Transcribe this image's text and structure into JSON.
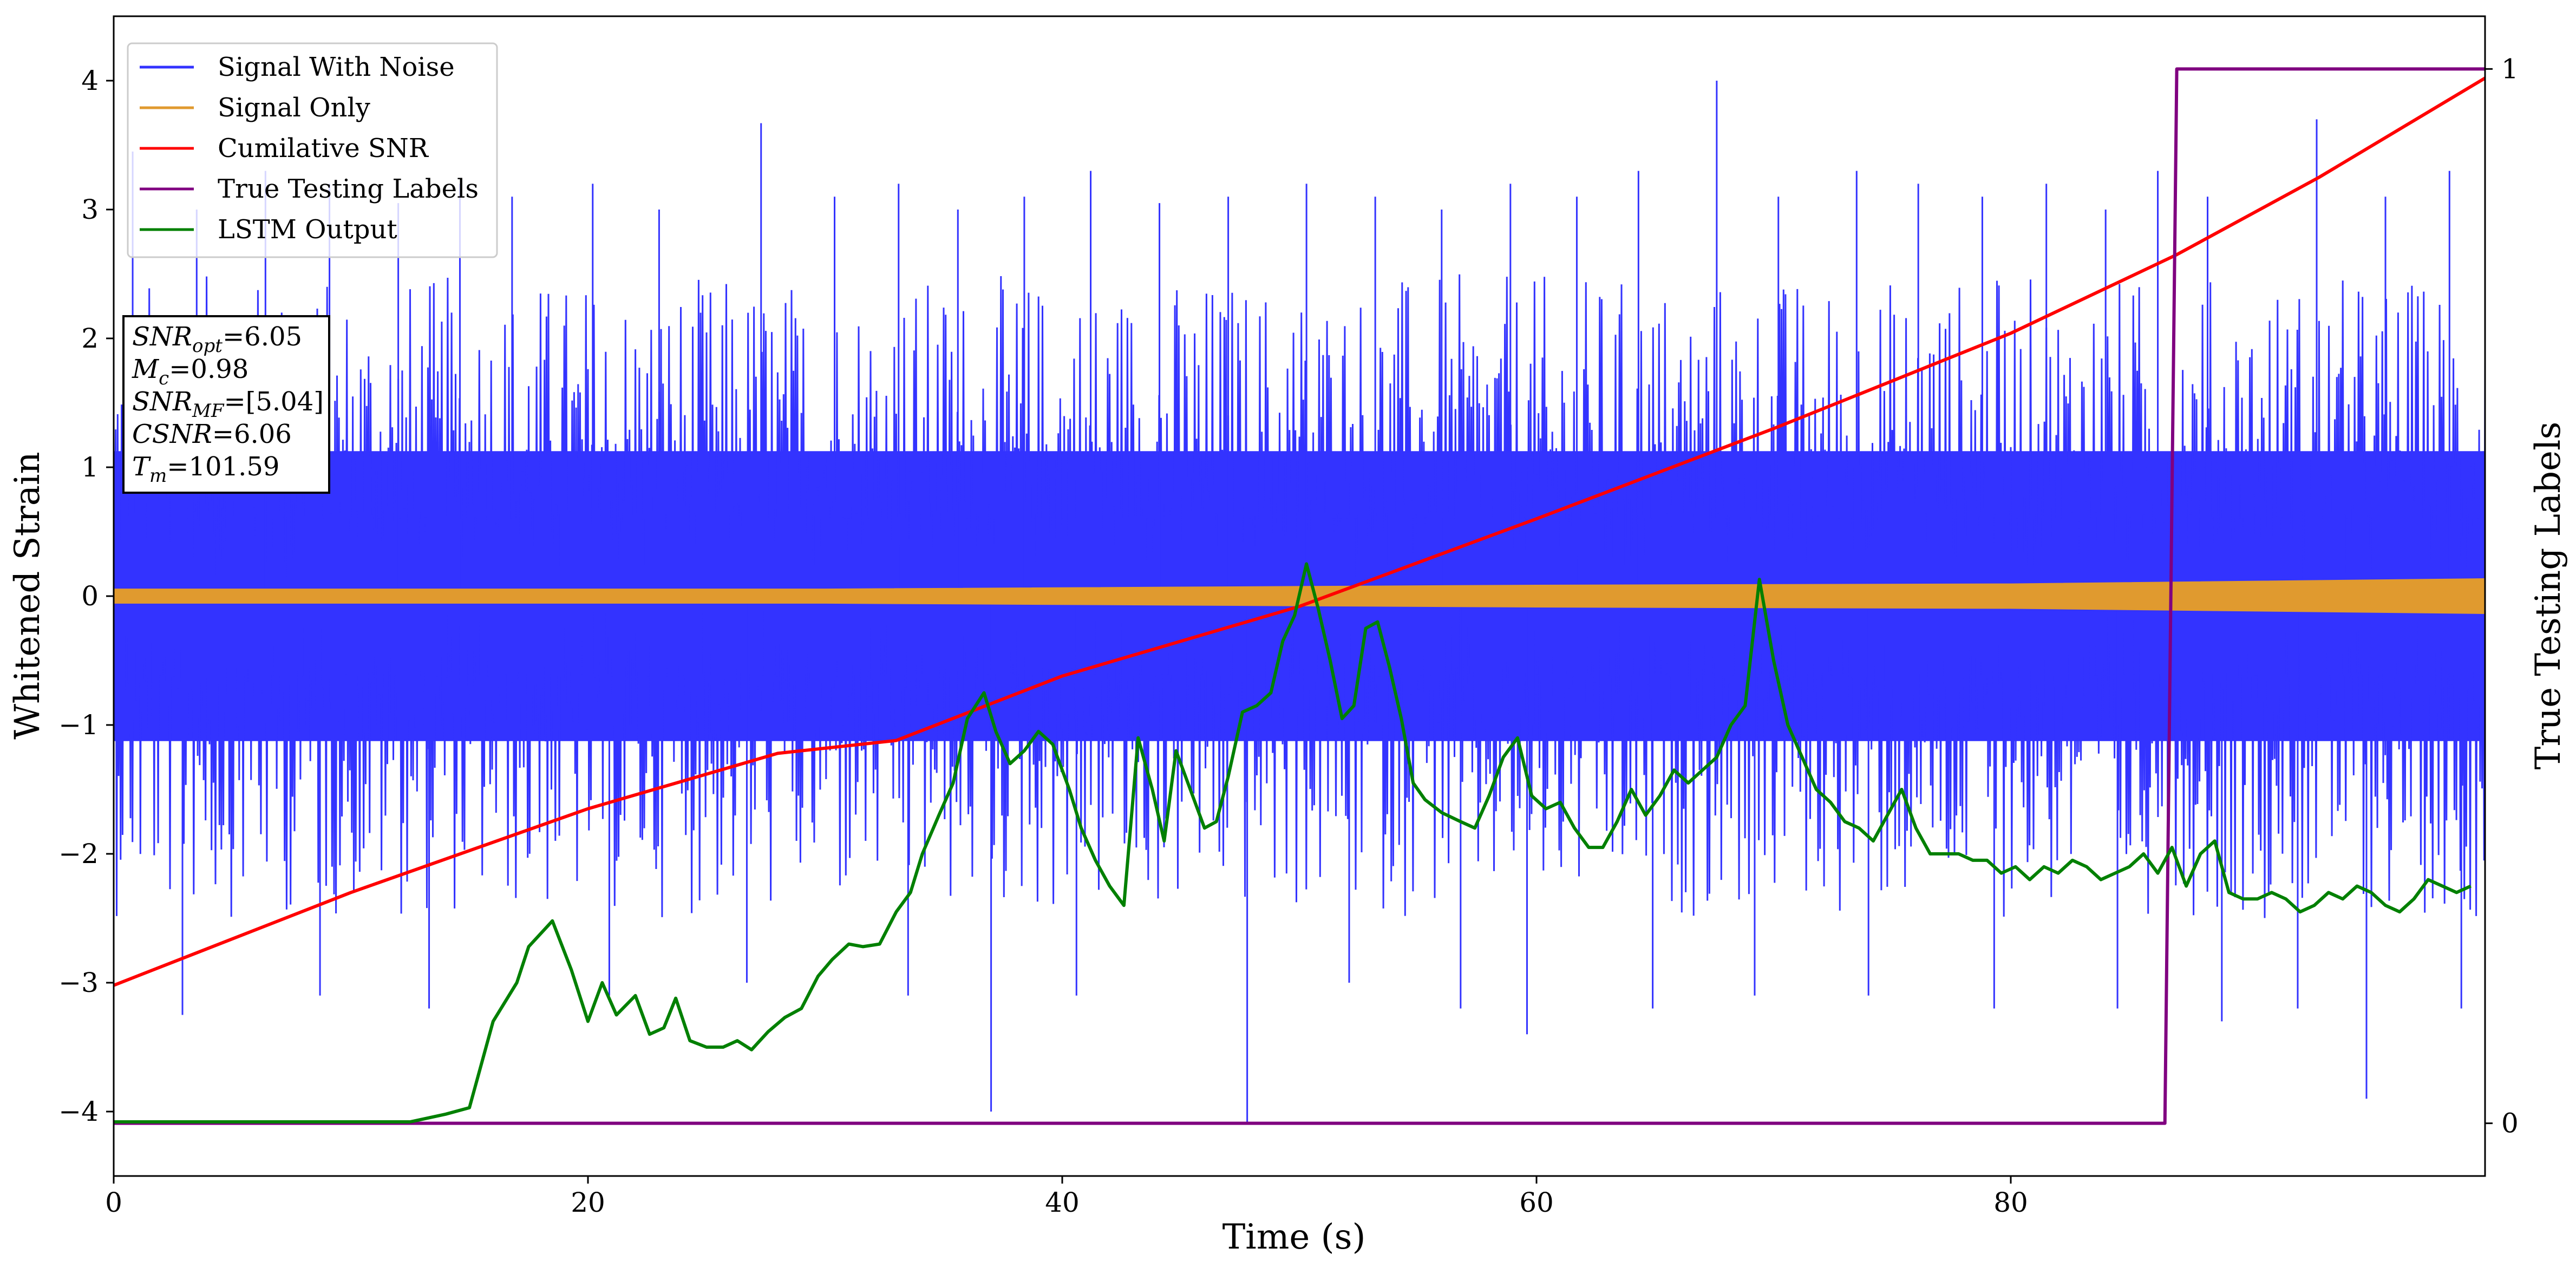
{
  "chart_data": {
    "type": "line",
    "xlabel": "Time (s)",
    "ylabel": "Whitened Strain",
    "y2label": "True Testing Labels",
    "xlim": [
      0,
      100
    ],
    "ylim": [
      -4.5,
      4.5
    ],
    "y2lim": [
      -0.05,
      1.05
    ],
    "x_ticks": [
      0,
      20,
      40,
      60,
      80
    ],
    "y_ticks": [
      -4,
      -3,
      -2,
      -1,
      0,
      1,
      2,
      3,
      4
    ],
    "y2_ticks": [
      0,
      1
    ],
    "legend_placement": "top-left",
    "series": [
      {
        "name": "Signal With Noise",
        "color": "#3333ff",
        "kind": "noise",
        "envelope": [
          -2.5,
          2.5
        ],
        "spikes": [
          {
            "x": 0.8,
            "y": 3.45
          },
          {
            "x": 3.5,
            "y": 3.0
          },
          {
            "x": 6.4,
            "y": 3.3
          },
          {
            "x": 9.1,
            "y": 3.2
          },
          {
            "x": 12.0,
            "y": 3.05
          },
          {
            "x": 14.6,
            "y": 3.2
          },
          {
            "x": 16.8,
            "y": 3.1
          },
          {
            "x": 20.2,
            "y": 3.2
          },
          {
            "x": 23.0,
            "y": 3.0
          },
          {
            "x": 27.3,
            "y": 3.67
          },
          {
            "x": 30.4,
            "y": 3.1
          },
          {
            "x": 33.1,
            "y": 3.2
          },
          {
            "x": 35.6,
            "y": 3.0
          },
          {
            "x": 38.4,
            "y": 3.1
          },
          {
            "x": 41.2,
            "y": 3.3
          },
          {
            "x": 44.1,
            "y": 3.05
          },
          {
            "x": 47.0,
            "y": 3.1
          },
          {
            "x": 50.3,
            "y": 3.2
          },
          {
            "x": 53.2,
            "y": 3.1
          },
          {
            "x": 56.0,
            "y": 3.0
          },
          {
            "x": 58.9,
            "y": 3.2
          },
          {
            "x": 61.7,
            "y": 3.1
          },
          {
            "x": 64.3,
            "y": 3.3
          },
          {
            "x": 67.6,
            "y": 4.0
          },
          {
            "x": 70.2,
            "y": 3.1
          },
          {
            "x": 73.5,
            "y": 3.3
          },
          {
            "x": 76.1,
            "y": 3.2
          },
          {
            "x": 78.8,
            "y": 3.1
          },
          {
            "x": 81.5,
            "y": 3.2
          },
          {
            "x": 84.0,
            "y": 3.0
          },
          {
            "x": 86.2,
            "y": 3.3
          },
          {
            "x": 88.3,
            "y": 3.1
          },
          {
            "x": 92.9,
            "y": 3.7
          },
          {
            "x": 95.8,
            "y": 3.1
          },
          {
            "x": 98.5,
            "y": 3.3
          },
          {
            "x": 2.9,
            "y": -3.25
          },
          {
            "x": 8.7,
            "y": -3.1
          },
          {
            "x": 13.3,
            "y": -3.2
          },
          {
            "x": 20.9,
            "y": -3.1
          },
          {
            "x": 26.7,
            "y": -3.0
          },
          {
            "x": 33.5,
            "y": -3.1
          },
          {
            "x": 37.0,
            "y": -4.0
          },
          {
            "x": 40.6,
            "y": -3.1
          },
          {
            "x": 47.8,
            "y": -4.1
          },
          {
            "x": 52.1,
            "y": -3.0
          },
          {
            "x": 56.8,
            "y": -3.2
          },
          {
            "x": 59.6,
            "y": -3.4
          },
          {
            "x": 64.9,
            "y": -3.2
          },
          {
            "x": 69.2,
            "y": -3.1
          },
          {
            "x": 74.0,
            "y": -3.1
          },
          {
            "x": 79.3,
            "y": -3.2
          },
          {
            "x": 84.5,
            "y": -3.2
          },
          {
            "x": 88.9,
            "y": -3.3
          },
          {
            "x": 92.1,
            "y": -3.2
          },
          {
            "x": 95.0,
            "y": -3.9
          },
          {
            "x": 99.0,
            "y": -3.2
          }
        ]
      },
      {
        "name": "Signal Only",
        "color": "#e09a2f",
        "kind": "band",
        "band": [
          {
            "x": 0,
            "lo": -0.05,
            "hi": 0.05
          },
          {
            "x": 30,
            "lo": -0.05,
            "hi": 0.05
          },
          {
            "x": 60,
            "lo": -0.08,
            "hi": 0.08
          },
          {
            "x": 80,
            "lo": -0.09,
            "hi": 0.09
          },
          {
            "x": 100,
            "lo": -0.13,
            "hi": 0.13
          }
        ]
      },
      {
        "name": "Cumilative SNR",
        "color": "#ff0000",
        "axis": "left",
        "x": [
          0,
          10,
          20,
          28,
          33,
          40,
          50,
          60,
          70,
          80,
          87,
          93,
          100
        ],
        "y": [
          -3.02,
          -2.3,
          -1.65,
          -1.22,
          -1.12,
          -0.62,
          -0.08,
          0.6,
          1.3,
          2.04,
          2.65,
          3.25,
          4.02
        ]
      },
      {
        "name": "True Testing Labels",
        "color": "#800080",
        "axis": "right",
        "x": [
          0,
          86.5,
          87.0,
          100
        ],
        "y": [
          0,
          0,
          1,
          1
        ]
      },
      {
        "name": "LSTM Output",
        "color": "#008000",
        "axis": "left",
        "x": [
          0,
          12.5,
          14.0,
          15.0,
          16.0,
          17.0,
          17.5,
          18.5,
          19.3,
          20.0,
          20.6,
          21.2,
          22.0,
          22.6,
          23.2,
          23.7,
          24.3,
          25.0,
          25.7,
          26.3,
          26.9,
          27.6,
          28.3,
          29.0,
          29.7,
          30.3,
          31.0,
          31.6,
          32.3,
          33.0,
          33.6,
          34.1,
          34.8,
          35.4,
          36.0,
          36.7,
          37.2,
          37.8,
          38.4,
          39.0,
          39.6,
          40.3,
          40.8,
          41.4,
          42.0,
          42.6,
          43.2,
          43.8,
          44.3,
          44.8,
          45.4,
          46.0,
          46.5,
          47.0,
          47.6,
          48.2,
          48.8,
          49.3,
          49.8,
          50.3,
          50.8,
          51.3,
          51.8,
          52.3,
          52.8,
          53.3,
          53.8,
          54.3,
          54.8,
          55.3,
          56.0,
          56.8,
          57.4,
          58.0,
          58.6,
          59.2,
          59.8,
          60.4,
          61.0,
          61.6,
          62.2,
          62.8,
          63.4,
          64.0,
          64.6,
          65.2,
          65.8,
          66.4,
          67.0,
          67.6,
          68.2,
          68.8,
          69.4,
          70.0,
          70.6,
          71.2,
          71.8,
          72.4,
          73.0,
          73.6,
          74.2,
          74.8,
          75.4,
          76.0,
          76.6,
          77.2,
          77.8,
          78.4,
          79.0,
          79.6,
          80.2,
          80.8,
          81.4,
          82.0,
          82.6,
          83.2,
          83.8,
          84.4,
          85.0,
          85.6,
          86.2,
          86.8,
          87.4,
          88.0,
          88.6,
          89.2,
          89.8,
          90.4,
          91.0,
          91.6,
          92.2,
          92.8,
          93.4,
          94.0,
          94.6,
          95.2,
          95.8,
          96.4,
          97.0,
          97.6,
          98.2,
          98.8,
          99.4
        ],
        "y": [
          -4.08,
          -4.08,
          -4.02,
          -3.97,
          -3.3,
          -3.0,
          -2.72,
          -2.52,
          -2.9,
          -3.3,
          -3.0,
          -3.25,
          -3.1,
          -3.4,
          -3.35,
          -3.12,
          -3.45,
          -3.5,
          -3.5,
          -3.45,
          -3.52,
          -3.38,
          -3.27,
          -3.2,
          -2.95,
          -2.82,
          -2.7,
          -2.72,
          -2.7,
          -2.45,
          -2.3,
          -2.0,
          -1.7,
          -1.45,
          -0.95,
          -0.75,
          -1.05,
          -1.3,
          -1.2,
          -1.05,
          -1.15,
          -1.5,
          -1.8,
          -2.05,
          -2.25,
          -2.4,
          -1.1,
          -1.5,
          -1.9,
          -1.2,
          -1.5,
          -1.8,
          -1.75,
          -1.4,
          -0.9,
          -0.85,
          -0.75,
          -0.35,
          -0.15,
          0.25,
          -0.1,
          -0.5,
          -0.95,
          -0.85,
          -0.25,
          -0.2,
          -0.55,
          -0.95,
          -1.45,
          -1.58,
          -1.68,
          -1.75,
          -1.8,
          -1.55,
          -1.25,
          -1.1,
          -1.55,
          -1.65,
          -1.6,
          -1.8,
          -1.95,
          -1.95,
          -1.75,
          -1.5,
          -1.7,
          -1.55,
          -1.35,
          -1.45,
          -1.35,
          -1.25,
          -1.0,
          -0.85,
          0.13,
          -0.5,
          -1.0,
          -1.25,
          -1.5,
          -1.6,
          -1.75,
          -1.8,
          -1.9,
          -1.7,
          -1.5,
          -1.8,
          -2.0,
          -2.0,
          -2.0,
          -2.05,
          -2.05,
          -2.15,
          -2.1,
          -2.2,
          -2.1,
          -2.15,
          -2.05,
          -2.1,
          -2.2,
          -2.15,
          -2.1,
          -2.0,
          -2.15,
          -1.95,
          -2.25,
          -2.0,
          -1.9,
          -2.3,
          -2.35,
          -2.35,
          -2.3,
          -2.35,
          -2.45,
          -2.4,
          -2.3,
          -2.35,
          -2.25,
          -2.3,
          -2.4,
          -2.45,
          -2.35,
          -2.2,
          -2.25,
          -2.3,
          -2.25
        ]
      }
    ],
    "info_box": [
      {
        "sym": "SNR",
        "sub": "opt",
        "val": "=6.05"
      },
      {
        "sym": "M",
        "sub": "c",
        "val": "=0.98"
      },
      {
        "sym": "SNR",
        "sub": "MF",
        "val": "=[5.04]"
      },
      {
        "sym": "CSNR",
        "sub": "",
        "val": "=6.06"
      },
      {
        "sym": "T",
        "sub": "m",
        "val": "=101.59"
      }
    ]
  }
}
